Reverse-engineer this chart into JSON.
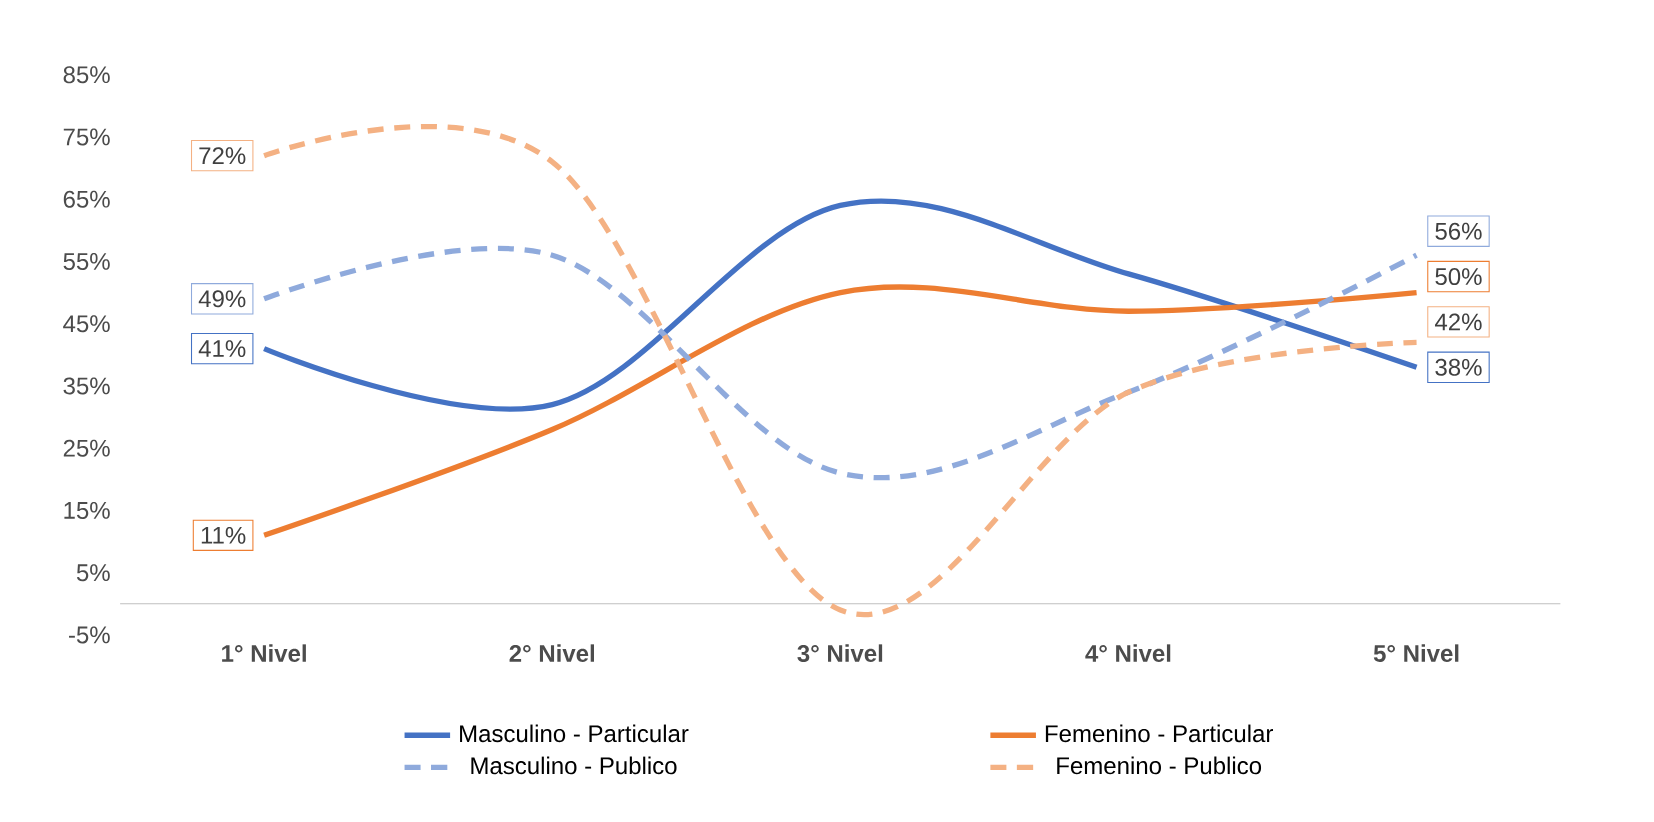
{
  "chart_data": {
    "type": "line",
    "categories": [
      "1° Nivel",
      "2° Nivel",
      "3° Nivel",
      "4° Nivel",
      "5° Nivel"
    ],
    "series": [
      {
        "name": "Masculino - Particular",
        "color": "#4472c4",
        "line_style": "solid",
        "values": [
          41,
          32,
          64,
          53,
          38
        ],
        "value_labels": [
          "41%",
          null,
          null,
          null,
          "38%"
        ]
      },
      {
        "name": "Femenino - Particular",
        "color": "#ed7d31",
        "line_style": "solid",
        "values": [
          11,
          28,
          50,
          47,
          50
        ],
        "value_labels": [
          "11%",
          null,
          null,
          null,
          "50%"
        ]
      },
      {
        "name": "Masculino - Publico",
        "color": "#8faadc",
        "line_style": "dashed",
        "values": [
          49,
          56,
          21,
          34,
          56
        ],
        "value_labels": [
          "49%",
          null,
          null,
          null,
          "56%"
        ]
      },
      {
        "name": "Femenino - Publico",
        "color": "#f4b183",
        "line_style": "dashed",
        "values": [
          72,
          71,
          -1,
          34,
          42
        ],
        "value_labels": [
          "72%",
          null,
          null,
          null,
          "42%"
        ]
      }
    ],
    "ylim": [
      -5,
      85
    ],
    "yticks": [
      {
        "value": -5,
        "label": "-5%"
      },
      {
        "value": 5,
        "label": "5%"
      },
      {
        "value": 15,
        "label": "15%"
      },
      {
        "value": 25,
        "label": "25%"
      },
      {
        "value": 35,
        "label": "35%"
      },
      {
        "value": 45,
        "label": "45%"
      },
      {
        "value": 55,
        "label": "55%"
      },
      {
        "value": 65,
        "label": "65%"
      },
      {
        "value": 75,
        "label": "75%"
      },
      {
        "value": 85,
        "label": "85%"
      }
    ],
    "grid": false,
    "legend": "bottom",
    "marker": "none"
  }
}
